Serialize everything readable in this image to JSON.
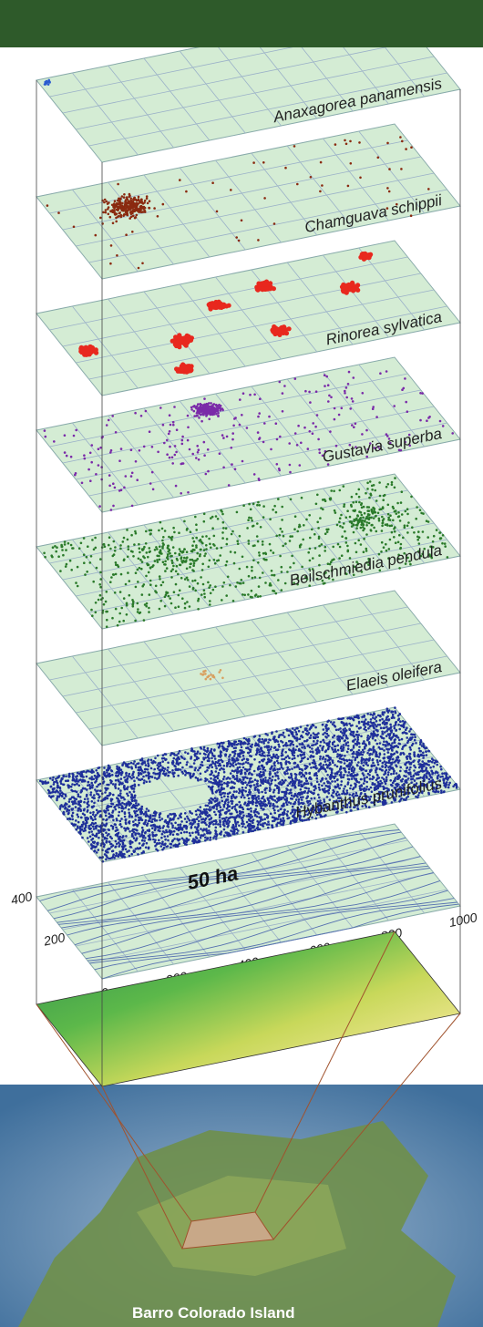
{
  "layers": [
    {
      "label": "Anaxagorea panamensis",
      "color": "#2a5bd0"
    },
    {
      "label": "Chamguava schippii",
      "color": "#8a2a10"
    },
    {
      "label": "Rinorea sylvatica",
      "color": "#e8281e"
    },
    {
      "label": "Gustavia superba",
      "color": "#7a2aa8"
    },
    {
      "label": "Beilschmiedia pendula",
      "color": "#2a7a2a"
    },
    {
      "label": "Elaeis oleifera",
      "color": "#d8a060"
    },
    {
      "label": "Hybanthus prunifolius",
      "color": "#1e2f9a"
    }
  ],
  "plot": {
    "area_label": "50 ha",
    "y_labels": [
      "400",
      "200"
    ],
    "x_labels": [
      "0",
      "200",
      "400",
      "600",
      "800",
      "1000"
    ]
  },
  "island_label": "Barro Colorado Island"
}
